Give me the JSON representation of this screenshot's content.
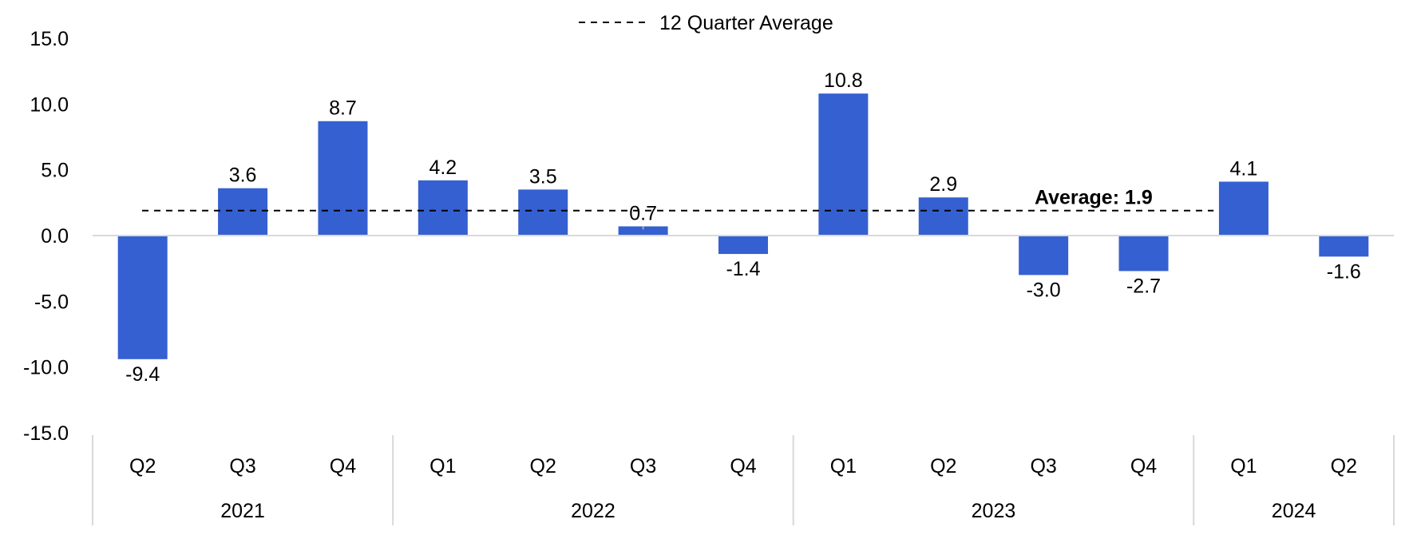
{
  "chart_data": {
    "type": "bar",
    "categories": [
      "Q2",
      "Q3",
      "Q4",
      "Q1",
      "Q2",
      "Q3",
      "Q4",
      "Q1",
      "Q2",
      "Q3",
      "Q4",
      "Q1",
      "Q2"
    ],
    "groups": [
      {
        "label": "2021",
        "count": 3
      },
      {
        "label": "2022",
        "count": 4
      },
      {
        "label": "2023",
        "count": 4
      },
      {
        "label": "2024",
        "count": 2
      }
    ],
    "values": [
      -9.4,
      3.6,
      8.7,
      4.2,
      3.5,
      0.7,
      -1.4,
      10.8,
      2.9,
      -3.0,
      -2.7,
      4.1,
      -1.6
    ],
    "value_labels": [
      "-9.4",
      "3.6",
      "8.7",
      "4.2",
      "3.5",
      "0.7",
      "-1.4",
      "10.8",
      "2.9",
      "-3.0",
      "-2.7",
      "4.1",
      "-1.6"
    ],
    "ylim": [
      -15,
      15
    ],
    "yticks": [
      15,
      10,
      5,
      0,
      -5,
      -10,
      -15
    ],
    "ytick_labels": [
      "15.0",
      "10.0",
      "5.0",
      "0.0",
      "-5.0",
      "-10.0",
      "-15.0"
    ],
    "average": {
      "value": 1.9,
      "legend_label": "12 Quarter Average",
      "annotation": "Average: 1.9"
    },
    "legend_position": "top-center",
    "grid": false,
    "colors": {
      "bar": "#3560D1",
      "axis": "#D9D9D9",
      "average_line": "#000000"
    }
  }
}
